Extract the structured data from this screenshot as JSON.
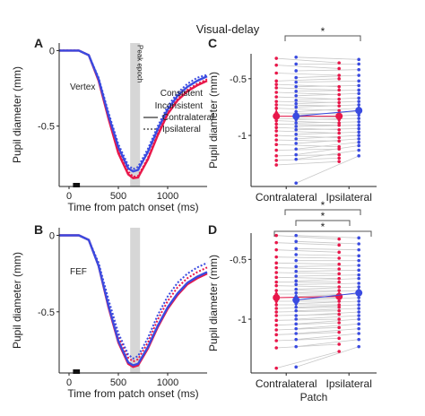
{
  "figure_title": "Visual-delay",
  "colors": {
    "consistent": "#e8174a",
    "inconsistent": "#3a4be0",
    "axis": "#222222",
    "peak_epoch": "#d6d6d6",
    "lines": "#c8c8c8",
    "bracket": "#555555"
  },
  "chart_data": [
    {
      "panel": "A",
      "type": "line",
      "annotation": "Vertex",
      "epoch_label": "Peak epoch",
      "xlabel": "Time from patch onset (ms)",
      "ylabel": "Pupil diameter (mm)",
      "xlim": [
        -100,
        1400
      ],
      "ylim": [
        -0.9,
        0.05
      ],
      "xticks": [
        0,
        500,
        1000
      ],
      "yticks": [
        0,
        -0.5
      ],
      "ytick_labels": [
        "0",
        "-0.5"
      ],
      "peak_epoch": [
        620,
        720
      ],
      "stimulus_bar": [
        40,
        110
      ],
      "legend": {
        "series": [
          "Consistent",
          "Inconsistent"
        ],
        "styles": [
          "Contralateral",
          "Ipsilateral"
        ]
      },
      "series": [
        {
          "name": "Consistent",
          "style": "Contralateral",
          "x": [
            -100,
            100,
            200,
            300,
            400,
            500,
            600,
            650,
            700,
            800,
            900,
            1000,
            1100,
            1200,
            1300,
            1400
          ],
          "y": [
            0,
            0,
            -0.03,
            -0.2,
            -0.45,
            -0.68,
            -0.82,
            -0.845,
            -0.84,
            -0.72,
            -0.56,
            -0.42,
            -0.33,
            -0.27,
            -0.23,
            -0.2
          ]
        },
        {
          "name": "Consistent",
          "style": "Ipsilateral",
          "x": [
            -100,
            100,
            200,
            300,
            400,
            500,
            600,
            650,
            700,
            800,
            900,
            1000,
            1100,
            1200,
            1300,
            1400
          ],
          "y": [
            0,
            0,
            -0.03,
            -0.2,
            -0.44,
            -0.66,
            -0.8,
            -0.835,
            -0.83,
            -0.71,
            -0.55,
            -0.41,
            -0.32,
            -0.26,
            -0.22,
            -0.19
          ]
        },
        {
          "name": "Inconsistent",
          "style": "Contralateral",
          "x": [
            -100,
            100,
            200,
            300,
            400,
            500,
            600,
            650,
            700,
            800,
            900,
            1000,
            1100,
            1200,
            1300,
            1400
          ],
          "y": [
            0,
            0,
            -0.03,
            -0.19,
            -0.43,
            -0.64,
            -0.78,
            -0.8,
            -0.79,
            -0.67,
            -0.52,
            -0.39,
            -0.3,
            -0.24,
            -0.2,
            -0.17
          ]
        },
        {
          "name": "Inconsistent",
          "style": "Ipsilateral",
          "x": [
            -100,
            100,
            200,
            300,
            400,
            500,
            600,
            650,
            700,
            800,
            900,
            1000,
            1100,
            1200,
            1300,
            1400
          ],
          "y": [
            0,
            0,
            -0.03,
            -0.18,
            -0.41,
            -0.62,
            -0.76,
            -0.785,
            -0.77,
            -0.65,
            -0.5,
            -0.37,
            -0.28,
            -0.22,
            -0.18,
            -0.16
          ]
        }
      ]
    },
    {
      "panel": "B",
      "type": "line",
      "annotation": "FEF",
      "xlabel": "Time from patch onset (ms)",
      "ylabel": "Pupil diameter (mm)",
      "xlim": [
        -100,
        1400
      ],
      "ylim": [
        -0.9,
        0.05
      ],
      "xticks": [
        0,
        500,
        1000
      ],
      "yticks": [
        0,
        -0.5
      ],
      "ytick_labels": [
        "0",
        "-0.5"
      ],
      "peak_epoch": [
        620,
        720
      ],
      "stimulus_bar": [
        40,
        110
      ],
      "series": [
        {
          "name": "Consistent",
          "style": "Contralateral",
          "x": [
            -100,
            100,
            200,
            300,
            400,
            500,
            600,
            650,
            700,
            800,
            900,
            1000,
            1100,
            1200,
            1300,
            1400
          ],
          "y": [
            0,
            0,
            -0.03,
            -0.2,
            -0.47,
            -0.7,
            -0.84,
            -0.86,
            -0.85,
            -0.74,
            -0.6,
            -0.48,
            -0.39,
            -0.32,
            -0.28,
            -0.25
          ]
        },
        {
          "name": "Consistent",
          "style": "Ipsilateral",
          "x": [
            -100,
            100,
            200,
            300,
            400,
            500,
            600,
            650,
            700,
            800,
            900,
            1000,
            1100,
            1200,
            1300,
            1400
          ],
          "y": [
            0,
            0,
            -0.03,
            -0.19,
            -0.44,
            -0.66,
            -0.8,
            -0.825,
            -0.81,
            -0.7,
            -0.55,
            -0.43,
            -0.34,
            -0.28,
            -0.24,
            -0.21
          ]
        },
        {
          "name": "Inconsistent",
          "style": "Contralateral",
          "x": [
            -100,
            100,
            200,
            300,
            400,
            500,
            600,
            650,
            700,
            800,
            900,
            1000,
            1100,
            1200,
            1300,
            1400
          ],
          "y": [
            0,
            0,
            -0.03,
            -0.2,
            -0.46,
            -0.69,
            -0.83,
            -0.85,
            -0.84,
            -0.73,
            -0.59,
            -0.47,
            -0.38,
            -0.31,
            -0.27,
            -0.24
          ]
        },
        {
          "name": "Inconsistent",
          "style": "Ipsilateral",
          "x": [
            -100,
            100,
            200,
            300,
            400,
            500,
            600,
            650,
            700,
            800,
            900,
            1000,
            1100,
            1200,
            1300,
            1400
          ],
          "y": [
            0,
            0,
            -0.03,
            -0.18,
            -0.42,
            -0.64,
            -0.78,
            -0.805,
            -0.79,
            -0.67,
            -0.52,
            -0.4,
            -0.31,
            -0.25,
            -0.21,
            -0.18
          ]
        }
      ]
    },
    {
      "panel": "C",
      "type": "scatter",
      "xlabel": "",
      "ylabel": "Pupil diameter (mm)",
      "categories": [
        "Contralateral",
        "Ipsilateral"
      ],
      "ylim": [
        -1.45,
        -0.28
      ],
      "yticks": [
        -0.5,
        -1
      ],
      "ytick_labels": [
        "-0.5",
        "-1"
      ],
      "significance": [
        {
          "from": "Contralateral",
          "to": "Ipsilateral",
          "label": "*"
        }
      ],
      "means": {
        "Consistent": [
          -0.83,
          -0.83
        ],
        "Inconsistent": [
          -0.83,
          -0.78
        ]
      },
      "subjects": {
        "Consistent": {
          "Contralateral": [
            -0.32,
            -0.38,
            -0.45,
            -0.52,
            -0.55,
            -0.58,
            -0.62,
            -0.66,
            -0.7,
            -0.73,
            -0.76,
            -0.8,
            -0.83,
            -0.85,
            -0.87,
            -0.9,
            -0.93,
            -0.96,
            -1.0,
            -1.04,
            -1.08,
            -1.13,
            -1.18,
            -1.22,
            -1.26
          ],
          "Ipsilateral": [
            -0.36,
            -0.41,
            -0.47,
            -0.5,
            -0.57,
            -0.6,
            -0.64,
            -0.68,
            -0.71,
            -0.74,
            -0.78,
            -0.81,
            -0.84,
            -0.86,
            -0.89,
            -0.91,
            -0.95,
            -0.98,
            -1.02,
            -1.05,
            -1.1,
            -1.12,
            -1.17,
            -1.2,
            -1.23
          ]
        },
        "Inconsistent": {
          "Contralateral": [
            -0.31,
            -0.37,
            -0.43,
            -0.49,
            -0.53,
            -0.57,
            -0.61,
            -0.65,
            -0.69,
            -0.72,
            -0.75,
            -0.79,
            -0.82,
            -0.84,
            -0.86,
            -0.89,
            -0.92,
            -0.95,
            -0.99,
            -1.03,
            -1.07,
            -1.12,
            -1.17,
            -1.21,
            -1.42
          ],
          "Ipsilateral": [
            -0.33,
            -0.37,
            -0.42,
            -0.47,
            -0.52,
            -0.56,
            -0.6,
            -0.63,
            -0.67,
            -0.7,
            -0.73,
            -0.76,
            -0.79,
            -0.82,
            -0.85,
            -0.88,
            -0.91,
            -0.94,
            -0.97,
            -1.0,
            -1.03,
            -1.06,
            -1.09,
            -1.13,
            -1.18
          ]
        }
      }
    },
    {
      "panel": "D",
      "type": "scatter",
      "xlabel": "Patch",
      "ylabel": "Pupil diameter (mm)",
      "categories": [
        "Contralateral",
        "Ipsilateral"
      ],
      "ylim": [
        -1.45,
        -0.28
      ],
      "yticks": [
        -0.5,
        -1
      ],
      "ytick_labels": [
        "-0.5",
        "-1"
      ],
      "significance": [
        {
          "from": "Contralateral",
          "to": "Ipsilateral",
          "label": "*"
        },
        {
          "from": "Contralateral",
          "to": "Ipsilateral",
          "label": "*"
        },
        {
          "from": "Contralateral",
          "to": "Ipsilateral",
          "label": "*"
        }
      ],
      "means": {
        "Consistent": [
          -0.82,
          -0.81
        ],
        "Inconsistent": [
          -0.84,
          -0.78
        ]
      },
      "subjects": {
        "Consistent": {
          "Contralateral": [
            -0.3,
            -0.36,
            -0.42,
            -0.48,
            -0.53,
            -0.57,
            -0.61,
            -0.65,
            -0.69,
            -0.72,
            -0.76,
            -0.79,
            -0.82,
            -0.85,
            -0.88,
            -0.91,
            -0.94,
            -0.97,
            -1.01,
            -1.05,
            -1.09,
            -1.13,
            -1.18,
            -1.24,
            -1.41
          ],
          "Ipsilateral": [
            -0.33,
            -0.38,
            -0.44,
            -0.49,
            -0.54,
            -0.58,
            -0.62,
            -0.66,
            -0.69,
            -0.73,
            -0.76,
            -0.79,
            -0.82,
            -0.85,
            -0.88,
            -0.9,
            -0.93,
            -0.96,
            -1.0,
            -1.03,
            -1.07,
            -1.11,
            -1.16,
            -1.21,
            -1.27
          ]
        },
        "Inconsistent": {
          "Contralateral": [
            -0.3,
            -0.35,
            -0.41,
            -0.46,
            -0.51,
            -0.56,
            -0.6,
            -0.64,
            -0.68,
            -0.71,
            -0.75,
            -0.78,
            -0.81,
            -0.84,
            -0.87,
            -0.9,
            -0.93,
            -0.97,
            -1.0,
            -1.04,
            -1.08,
            -1.12,
            -1.17,
            -1.23,
            -1.4
          ],
          "Ipsilateral": [
            -0.32,
            -0.37,
            -0.42,
            -0.47,
            -0.51,
            -0.55,
            -0.59,
            -0.63,
            -0.66,
            -0.7,
            -0.73,
            -0.76,
            -0.79,
            -0.82,
            -0.85,
            -0.88,
            -0.91,
            -0.94,
            -0.97,
            -1.0,
            -1.04,
            -1.08,
            -1.12,
            -1.17,
            -1.23
          ]
        }
      }
    }
  ]
}
